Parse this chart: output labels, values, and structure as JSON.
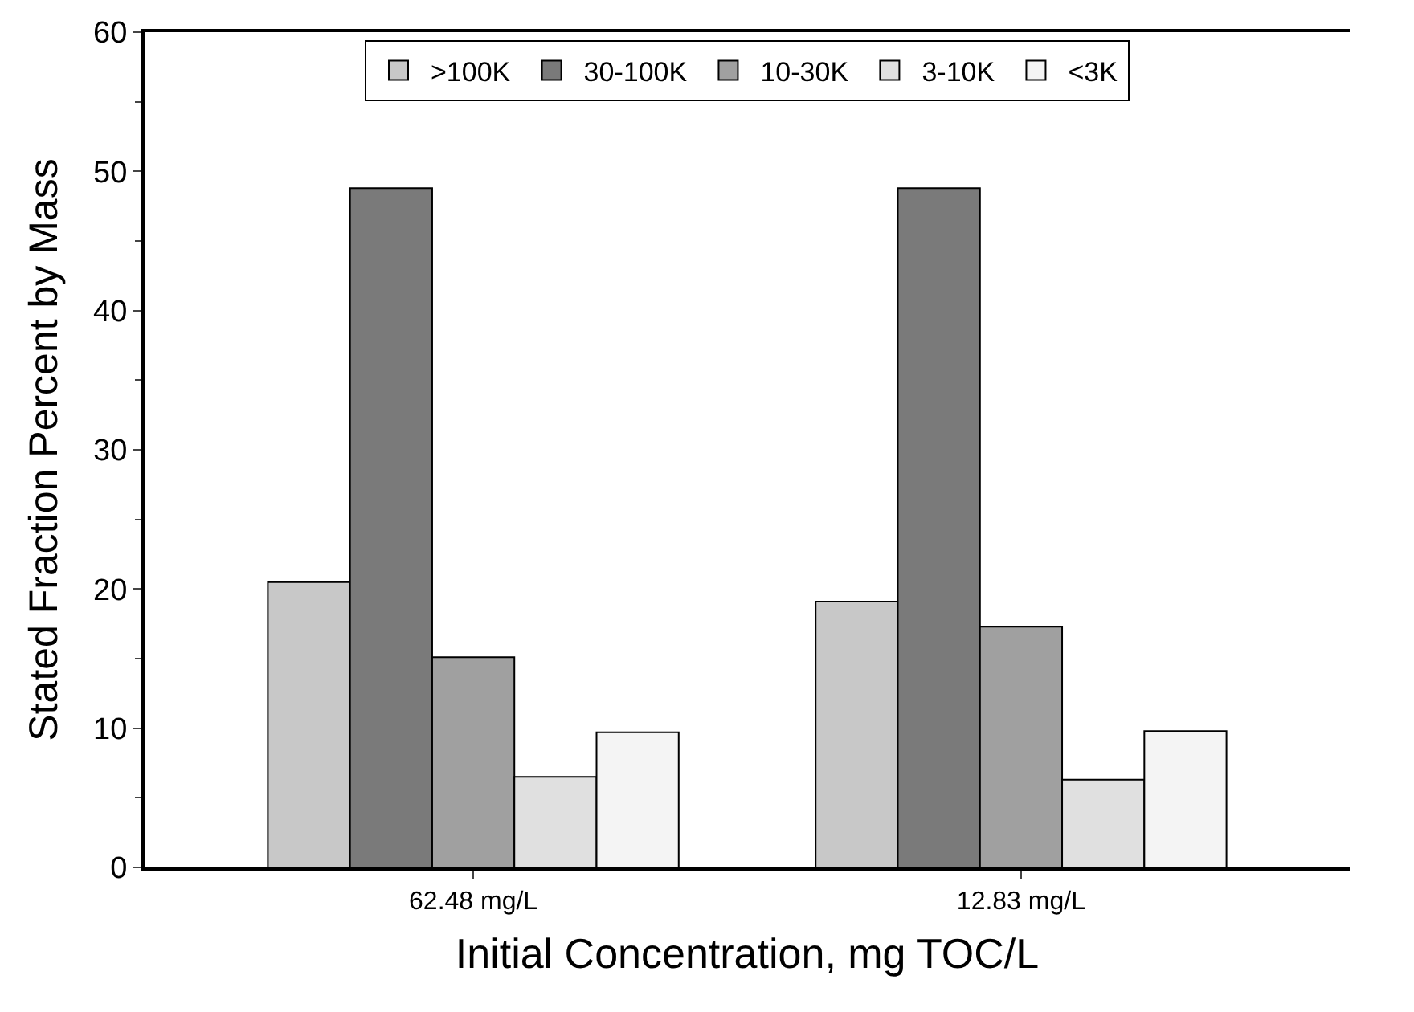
{
  "chart_data": {
    "type": "bar",
    "xlabel": "Initial Concentration, mg TOC/L",
    "ylabel": "Stated Fraction Percent by Mass",
    "categories": [
      "62.48 mg/L",
      "12.83 mg/L"
    ],
    "series": [
      {
        "name": ">100K",
        "color": "#c8c8c8",
        "values": [
          20.5,
          19.1
        ]
      },
      {
        "name": "30-100K",
        "color": "#7a7a7a",
        "values": [
          48.8,
          48.8
        ]
      },
      {
        "name": "10-30K",
        "color": "#a0a0a0",
        "values": [
          15.1,
          17.3
        ]
      },
      {
        "name": "3-10K",
        "color": "#e0e0e0",
        "values": [
          6.5,
          6.3
        ]
      },
      {
        "name": "<3K",
        "color": "#f4f4f4",
        "values": [
          9.7,
          9.8
        ]
      }
    ],
    "ylim": [
      0,
      60
    ],
    "yticks": [
      0,
      10,
      20,
      30,
      40,
      50,
      60
    ],
    "legend": "top"
  }
}
